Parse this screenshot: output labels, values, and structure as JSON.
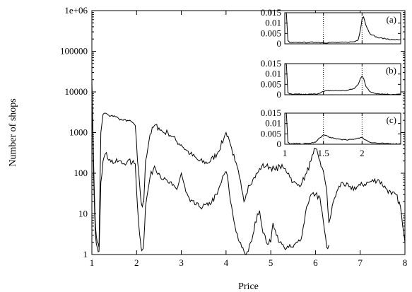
{
  "chart_data": [
    {
      "type": "line",
      "title": "",
      "xlabel": "Price",
      "ylabel": "Number of shops",
      "xlim": [
        1,
        8
      ],
      "ylim": [
        1,
        1000000
      ],
      "yscale": "log",
      "x_ticks": [
        "1",
        "2",
        "3",
        "4",
        "5",
        "6",
        "7",
        "8"
      ],
      "y_ticks": [
        "1",
        "10",
        "100",
        "1000",
        "10000",
        "100000",
        "1e+06"
      ],
      "grid": false,
      "series": [
        {
          "x": [
            1.0,
            1.02,
            1.05,
            1.08,
            1.12,
            1.16,
            1.2,
            1.25,
            1.3,
            1.4,
            1.5,
            1.6,
            1.7,
            1.8,
            1.9,
            1.97,
            2.02,
            2.07,
            2.1,
            2.13,
            2.16,
            2.2,
            2.3,
            2.4,
            2.5,
            2.6,
            2.7,
            2.8,
            2.9,
            3.0,
            3.1,
            3.2,
            3.4,
            3.6,
            3.8,
            3.95,
            4.0,
            4.05,
            4.1,
            4.2,
            4.3,
            4.35,
            4.4,
            4.45,
            4.5,
            4.6,
            4.7,
            4.8,
            4.9,
            5.0,
            5.1,
            5.2,
            5.3,
            5.4,
            5.5,
            5.6,
            5.7,
            5.8,
            5.9,
            5.95,
            6.0,
            6.1,
            6.2,
            6.25,
            6.3,
            6.35,
            6.4,
            6.5,
            6.6,
            6.8,
            7.0,
            7.2,
            7.4,
            7.6,
            7.7,
            7.8,
            7.9,
            7.95,
            8.0
          ],
          "y": [
            20000,
            1500,
            50,
            5,
            2,
            1.5,
            1000,
            2800,
            3000,
            2500,
            2600,
            2200,
            2000,
            2000,
            1800,
            1500,
            200,
            50,
            20,
            15,
            20,
            200,
            900,
            1500,
            1300,
            1000,
            1000,
            800,
            600,
            500,
            380,
            300,
            200,
            180,
            300,
            700,
            1000,
            800,
            500,
            200,
            80,
            40,
            20,
            30,
            50,
            70,
            100,
            150,
            150,
            140,
            120,
            150,
            130,
            100,
            60,
            50,
            60,
            100,
            200,
            300,
            400,
            200,
            80,
            40,
            6,
            10,
            20,
            40,
            60,
            40,
            50,
            60,
            70,
            40,
            30,
            30,
            15,
            5,
            2
          ]
        },
        {
          "x": [
            1.0,
            1.02,
            1.05,
            1.08,
            1.12,
            1.16,
            1.2,
            1.25,
            1.3,
            1.4,
            1.5,
            1.6,
            1.7,
            1.8,
            1.9,
            1.97,
            2.02,
            2.07,
            2.1,
            2.13,
            2.16,
            2.2,
            2.3,
            2.4,
            2.5,
            2.6,
            2.7,
            2.8,
            2.9,
            3.0,
            3.1,
            3.2,
            3.4,
            3.6,
            3.8,
            3.95,
            4.0,
            4.05,
            4.1,
            4.2,
            4.3,
            4.35,
            4.4,
            4.45,
            4.5,
            4.55,
            4.6,
            4.7,
            4.75,
            4.8,
            4.9,
            5.0,
            5.05,
            5.1,
            5.2,
            5.3,
            5.4,
            5.5,
            5.6,
            5.7,
            5.8,
            5.9,
            6.0,
            6.1,
            6.2,
            6.25,
            6.3
          ],
          "y": [
            15000,
            1000,
            30,
            3,
            1.5,
            1.2,
            60,
            200,
            300,
            220,
            180,
            200,
            170,
            200,
            180,
            170,
            15,
            3,
            1.5,
            1.3,
            2,
            15,
            80,
            150,
            100,
            70,
            60,
            50,
            40,
            100,
            35,
            20,
            15,
            16,
            30,
            90,
            110,
            60,
            20,
            5,
            2,
            1.5,
            1.2,
            1.0,
            1.2,
            2,
            3,
            10,
            12,
            5,
            2,
            2,
            6,
            4,
            2,
            1.5,
            1.5,
            1.5,
            2,
            3,
            15,
            30,
            30,
            25,
            4,
            1.5,
            1.7
          ]
        }
      ]
    },
    {
      "type": "line",
      "xlim": [
        1,
        2.5
      ],
      "ylim": [
        0,
        0.015
      ],
      "x_ticks": [
        "1",
        "1.5",
        "2"
      ],
      "y_ticks": [
        "0",
        "0.005",
        "0.01",
        "0.015"
      ],
      "vlines": [
        1.5,
        2
      ],
      "panels": [
        {
          "label": "(a)",
          "series": [
            {
              "x": [
                1.0,
                1.02,
                1.04,
                1.06,
                1.1,
                1.2,
                1.3,
                1.4,
                1.5,
                1.6,
                1.7,
                1.8,
                1.9,
                1.95,
                1.98,
                2.0,
                2.02,
                2.05,
                2.1,
                2.2,
                2.3,
                2.4,
                2.5
              ],
              "y": [
                0.015,
                0.015,
                0.0015,
                0.0007,
                0.0005,
                0.0007,
                0.0006,
                0.0008,
                0.0005,
                0.0007,
                0.0006,
                0.0008,
                0.001,
                0.002,
                0.007,
                0.012,
                0.013,
                0.009,
                0.005,
                0.003,
                0.0025,
                0.002,
                0.002
              ]
            }
          ]
        },
        {
          "label": "(b)",
          "series": [
            {
              "x": [
                1.0,
                1.02,
                1.04,
                1.06,
                1.1,
                1.2,
                1.3,
                1.4,
                1.5,
                1.55,
                1.6,
                1.7,
                1.8,
                1.9,
                1.95,
                1.98,
                2.0,
                2.02,
                2.05,
                2.1,
                2.2,
                2.3,
                2.4,
                2.5
              ],
              "y": [
                0.015,
                0.015,
                0.001,
                0.0004,
                0.0002,
                0.0002,
                0.0002,
                0.0003,
                0.0015,
                0.002,
                0.002,
                0.002,
                0.002,
                0.003,
                0.005,
                0.008,
                0.009,
                0.008,
                0.004,
                0.0015,
                0.0005,
                0.0003,
                0.0002,
                0.0002
              ]
            }
          ]
        },
        {
          "label": "(c)",
          "series": [
            {
              "x": [
                1.0,
                1.02,
                1.04,
                1.06,
                1.1,
                1.2,
                1.3,
                1.4,
                1.45,
                1.5,
                1.55,
                1.6,
                1.7,
                1.8,
                1.9,
                1.95,
                2.0,
                2.05,
                2.1,
                2.2,
                2.3,
                2.4,
                2.5
              ],
              "y": [
                0.015,
                0.015,
                0.001,
                0.0003,
                0.0002,
                0.0002,
                0.0003,
                0.001,
                0.003,
                0.0045,
                0.004,
                0.003,
                0.0025,
                0.002,
                0.0025,
                0.003,
                0.0032,
                0.002,
                0.001,
                0.0005,
                0.0003,
                0.0002,
                0.0002
              ]
            }
          ]
        }
      ]
    }
  ]
}
